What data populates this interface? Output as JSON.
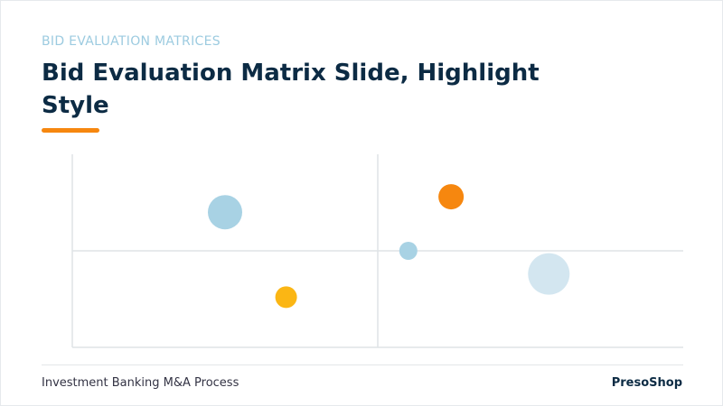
{
  "slide": {
    "eyebrow": "BID EVALUATION MATRICES",
    "title": "Bid Evaluation Matrix Slide, Highlight Style",
    "footer_left": "Investment Banking M&A Process",
    "footer_right": "PresoShop"
  },
  "chart_data": {
    "type": "bubble",
    "x": [
      25,
      35,
      62,
      55,
      78
    ],
    "values": [
      70,
      26,
      78,
      50,
      38
    ],
    "sizes": [
      19,
      12,
      14,
      10,
      23
    ],
    "colors": [
      "#a8d2e4",
      "#fbb614",
      "#f6870f",
      "#a8d2e4",
      "#d3e6f0"
    ],
    "xlim": [
      0,
      100
    ],
    "ylim": [
      0,
      100
    ]
  }
}
